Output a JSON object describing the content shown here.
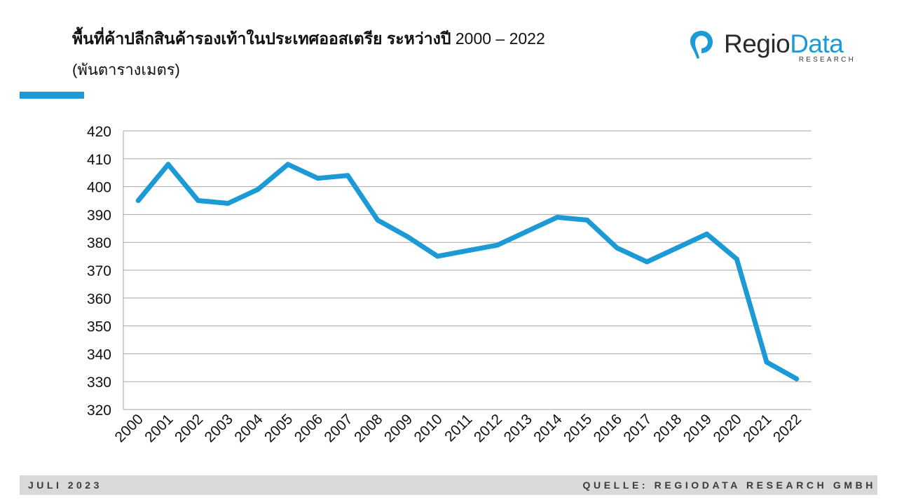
{
  "header": {
    "title": "พื้นที่ค้าปลีกสินค้ารองเท้าในประเทศออสเตรีย  ระหว่างปี",
    "title_years": " 2000 – 2022",
    "subtitle": "(พันตารางเมตร)"
  },
  "logo": {
    "word_regio": "Regio",
    "word_data": "Data",
    "tagline": "RESEARCH",
    "icon": "location-pin-icon"
  },
  "footer": {
    "date": "JULI 2023",
    "source": "QUELLE: REGIODATA RESEARCH GMBH"
  },
  "colors": {
    "accent": "#1c9ad6",
    "grid": "#a6a6a6",
    "footer_bg": "#d9d9d9"
  },
  "chart_data": {
    "type": "line",
    "title": "",
    "xlabel": "",
    "ylabel": "",
    "x": [
      "2000",
      "2001",
      "2002",
      "2003",
      "2004",
      "2005",
      "2006",
      "2007",
      "2008",
      "2009",
      "2010",
      "2011",
      "2012",
      "2013",
      "2014",
      "2015",
      "2016",
      "2017",
      "2018",
      "2019",
      "2020",
      "2021",
      "2022"
    ],
    "series": [
      {
        "values": [
          395,
          408,
          395,
          394,
          399,
          408,
          403,
          404,
          388,
          382,
          375,
          377,
          379,
          384,
          389,
          388,
          378,
          373,
          378,
          383,
          374,
          337,
          331
        ]
      }
    ],
    "ylim": [
      320,
      420
    ],
    "yticks": [
      420,
      410,
      400,
      390,
      380,
      370,
      360,
      350,
      340,
      330,
      320
    ],
    "grid": true,
    "legend": "none"
  }
}
